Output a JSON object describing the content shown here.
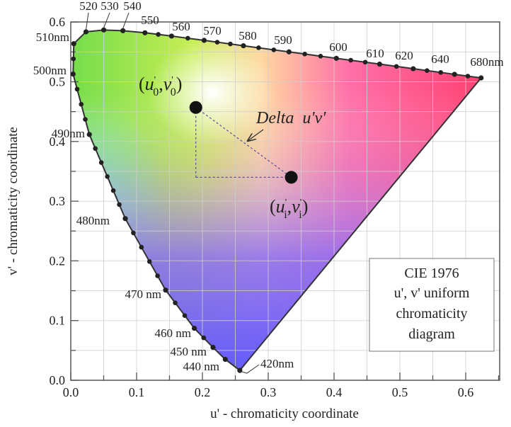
{
  "chart_data": {
    "type": "diagram",
    "title": "CIE 1976 u', v' uniform chromaticity diagram",
    "legend_lines": [
      "CIE 1976",
      "u', v' uniform",
      "chromaticity",
      "diagram"
    ],
    "xlabel": "u' - chromaticity coordinate",
    "ylabel": "v' - chromaticity coordinate",
    "xlim": [
      0.0,
      0.65
    ],
    "ylim": [
      0.0,
      0.6
    ],
    "xticks": [
      "0.0",
      "0.1",
      "0.2",
      "0.3",
      "0.4",
      "0.5",
      "0.6"
    ],
    "yticks": [
      "0.0",
      "0.1",
      "0.2",
      "0.3",
      "0.4",
      "0.5",
      "0.6"
    ],
    "grid": true,
    "spectral_locus": [
      {
        "label": "420nm",
        "u": 0.2568,
        "v": 0.0165
      },
      {
        "label": "440 nm",
        "u": 0.2347,
        "v": 0.035
      },
      {
        "label": "450 nm",
        "u": 0.2161,
        "v": 0.055
      },
      {
        "label": "460 nm",
        "u": 0.1877,
        "v": 0.0871
      },
      {
        "label": "470 nm",
        "u": 0.1441,
        "v": 0.151
      },
      {
        "label": "480nm",
        "u": 0.0828,
        "v": 0.2708
      },
      {
        "label": "490nm",
        "u": 0.0282,
        "v": 0.4117
      },
      {
        "label": "500nm",
        "u": 0.0035,
        "v": 0.513
      },
      {
        "label": "510nm",
        "u": 0.0046,
        "v": 0.5638
      },
      {
        "label": "520",
        "u": 0.0231,
        "v": 0.5837
      },
      {
        "label": "530",
        "u": 0.0501,
        "v": 0.5868
      },
      {
        "label": "540",
        "u": 0.0792,
        "v": 0.5856
      },
      {
        "label": "550",
        "u": 0.1127,
        "v": 0.5821
      },
      {
        "label": "560",
        "u": 0.1531,
        "v": 0.5766
      },
      {
        "label": "570",
        "u": 0.2026,
        "v": 0.5694
      },
      {
        "label": "580",
        "u": 0.2623,
        "v": 0.5604
      },
      {
        "label": "590",
        "u": 0.3315,
        "v": 0.5501
      },
      {
        "label": "600",
        "u": 0.4035,
        "v": 0.5393
      },
      {
        "label": "610",
        "u": 0.4692,
        "v": 0.5296
      },
      {
        "label": "620",
        "u": 0.5203,
        "v": 0.5219
      },
      {
        "label": "640",
        "u": 0.583,
        "v": 0.5125
      },
      {
        "label": "680nm",
        "u": 0.6234,
        "v": 0.5065
      }
    ],
    "reference_point": {
      "label_u": "u",
      "label_v": "v",
      "subscript": "0",
      "u": 0.19,
      "v": 0.457
    },
    "test_point": {
      "label_u": "u",
      "label_v": "v",
      "subscript": "i",
      "u": 0.335,
      "v": 0.34
    },
    "annotation": {
      "text_delta": "Delta",
      "text_uv": "u'v'"
    }
  }
}
